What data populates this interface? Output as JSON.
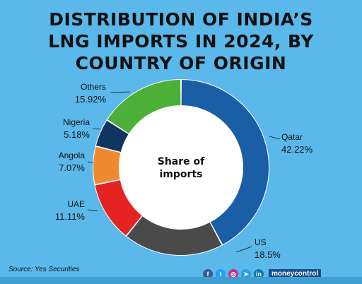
{
  "title_lines": [
    "DISTRIBUTION OF INDIA’S",
    "LNG IMPORTS IN 2024, BY",
    "COUNTRY OF ORIGIN"
  ],
  "center_label_lines": [
    "Share of",
    "imports"
  ],
  "source": "Source: Yes Securities",
  "brand": {
    "text": "moneycontrol"
  },
  "social_icons": [
    {
      "name": "facebook-icon",
      "glyph": "f",
      "color": "#3b5998"
    },
    {
      "name": "twitter-icon",
      "glyph": "t",
      "color": "#1da1f2"
    },
    {
      "name": "instagram-icon",
      "glyph": "◎",
      "color": "#c13584"
    },
    {
      "name": "telegram-icon",
      "glyph": "➤",
      "color": "#2aa1da"
    },
    {
      "name": "linkedin-icon",
      "glyph": "in",
      "color": "#0e76a8"
    }
  ],
  "chart_data": {
    "type": "pie",
    "variant": "donut",
    "title": "DISTRIBUTION OF INDIA’S LNG IMPORTS IN 2024, BY COUNTRY OF ORIGIN",
    "slices": [
      {
        "label": "Qatar",
        "value": 42.22,
        "display": "42.22%",
        "color": "#1a5fa5"
      },
      {
        "label": "US",
        "value": 18.5,
        "display": "18.5%",
        "color": "#4a4a4a"
      },
      {
        "label": "UAE",
        "value": 11.11,
        "display": "11.11%",
        "color": "#e62323"
      },
      {
        "label": "Angola",
        "value": 7.07,
        "display": "7.07%",
        "color": "#f08a30"
      },
      {
        "label": "Nigeria",
        "value": 5.18,
        "display": "5.18%",
        "color": "#10355f"
      },
      {
        "label": "Others",
        "value": 15.92,
        "display": "15.92%",
        "color": "#4caf38"
      }
    ]
  }
}
